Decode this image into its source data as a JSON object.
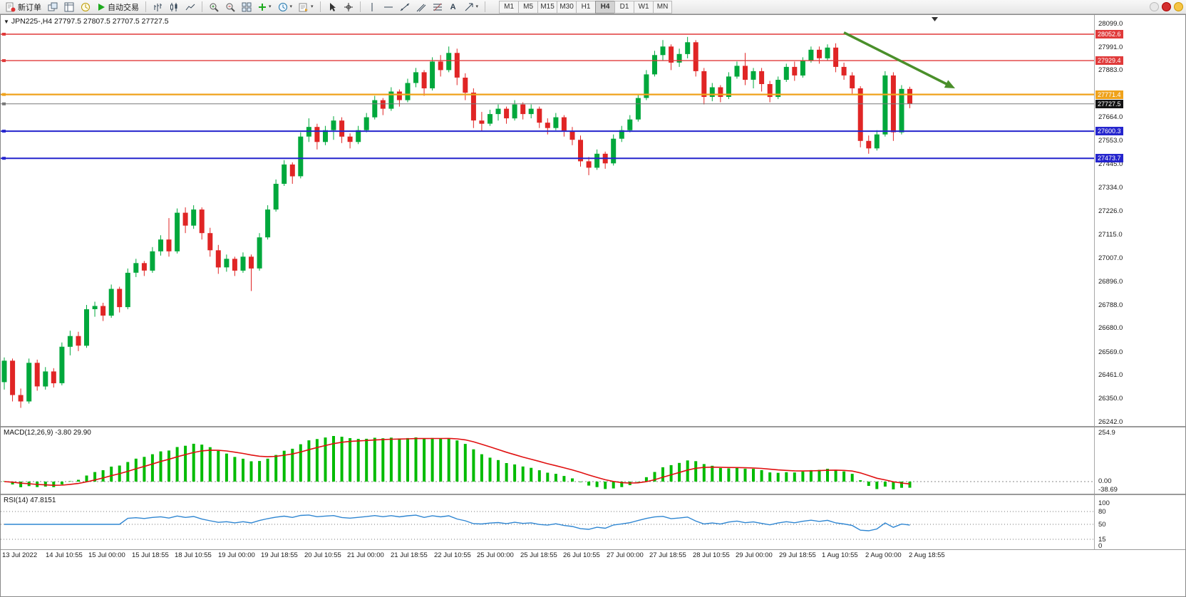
{
  "toolbar": {
    "new_order_label": "新订单",
    "autotrading_label": "自动交易",
    "text_tool_label": "A",
    "timeframes": [
      "M1",
      "M5",
      "M15",
      "M30",
      "H1",
      "H4",
      "D1",
      "W1",
      "MN"
    ],
    "active_timeframe": "H4"
  },
  "chart": {
    "title": "JPN225-,H4  27797.5 27807.5 27707.5 27727.5",
    "symbol": "JPN225-",
    "period": "H4",
    "open": "27797.5",
    "high": "27807.5",
    "low": "27707.5",
    "close": "27727.5"
  },
  "colors": {
    "bull": "#00a83c",
    "bear": "#e02525",
    "macd_hist": "#00bb00",
    "macd_signal": "#e01010",
    "rsi_line": "#2f86d2",
    "line_red": "#e03a3a",
    "line_orange": "#efa21b",
    "line_blue": "#2525cd",
    "price_line_grey": "#787878",
    "badge_black": "#141414",
    "arrow_green": "#4a8f2a"
  },
  "price_axis": {
    "max": 28099.0,
    "min": 26242.0,
    "labels": [
      "28099.0",
      "27991.0",
      "27883.0",
      "27664.0",
      "27553.0",
      "27445.0",
      "27334.0",
      "27226.0",
      "27115.0",
      "27007.0",
      "26896.0",
      "26788.0",
      "26680.0",
      "26569.0",
      "26461.0",
      "26350.0",
      "26242.0"
    ]
  },
  "hlines": [
    {
      "price": 28052.6,
      "label": "28052.6",
      "color": "line_red",
      "width": 1.4
    },
    {
      "price": 27929.4,
      "label": "27929.4",
      "color": "line_red",
      "width": 1.4
    },
    {
      "price": 27771.4,
      "label": "27771.4",
      "color": "line_orange",
      "width": 2.2
    },
    {
      "price": 27727.5,
      "label": "27727.5",
      "color": "badge_black",
      "width": 1,
      "line_color": "price_line_grey"
    },
    {
      "price": 27600.3,
      "label": "27600.3",
      "color": "line_blue",
      "width": 2
    },
    {
      "price": 27473.7,
      "label": "27473.7",
      "color": "line_blue",
      "width": 2
    }
  ],
  "arrow": {
    "from_bar": 102,
    "from_price": 28060,
    "to_bar": 115.5,
    "to_price": 27800
  },
  "indicators": {
    "macd_label": "MACD(12,26,9) -3.80 29.90",
    "macd_axis": [
      "254.9",
      "0.00",
      "-38.69"
    ],
    "macd_params": {
      "fast": 12,
      "slow": 26,
      "signal": 9
    },
    "macd_current": [
      -3.8,
      29.9
    ],
    "rsi_label": "RSI(14) 47.8151",
    "rsi_axis": [
      "100",
      "80",
      "50",
      "15",
      "0"
    ],
    "rsi_levels": [
      80,
      50,
      15
    ],
    "rsi_period": 14,
    "rsi_current": 47.8151
  },
  "chart_data": [
    {
      "type": "candlestick",
      "title": "JPN225-,H4",
      "ylim": [
        26242.0,
        28099.0
      ],
      "x_labels": [
        "13 Jul 2022",
        "14 Jul 10:55",
        "15 Jul 00:00",
        "15 Jul 18:55",
        "18 Jul 10:55",
        "19 Jul 00:00",
        "19 Jul 18:55",
        "20 Jul 10:55",
        "21 Jul 00:00",
        "21 Jul 18:55",
        "22 Jul 10:55",
        "25 Jul 00:00",
        "25 Jul 18:55",
        "26 Jul 10:55",
        "27 Jul 00:00",
        "27 Jul 18:55",
        "28 Jul 10:55",
        "29 Jul 00:00",
        "29 Jul 18:55",
        "1 Aug 10:55",
        "2 Aug 00:00",
        "2 Aug 18:55"
      ],
      "candles": [
        [
          26430,
          26545,
          26395,
          26530
        ],
        [
          26530,
          26540,
          26340,
          26370
        ],
        [
          26370,
          26400,
          26310,
          26340
        ],
        [
          26340,
          26540,
          26330,
          26520
        ],
        [
          26520,
          26535,
          26390,
          26410
        ],
        [
          26410,
          26500,
          26395,
          26480
        ],
        [
          26480,
          26495,
          26405,
          26425
        ],
        [
          26425,
          26615,
          26415,
          26595
        ],
        [
          26595,
          26670,
          26555,
          26645
        ],
        [
          26645,
          26665,
          26575,
          26600
        ],
        [
          26600,
          26790,
          26590,
          26770
        ],
        [
          26770,
          26805,
          26735,
          26785
        ],
        [
          26785,
          26800,
          26715,
          26740
        ],
        [
          26740,
          26885,
          26730,
          26865
        ],
        [
          26865,
          26875,
          26755,
          26780
        ],
        [
          26780,
          26960,
          26770,
          26940
        ],
        [
          26940,
          27005,
          26920,
          26985
        ],
        [
          26985,
          26995,
          26925,
          26950
        ],
        [
          26950,
          27060,
          26940,
          27040
        ],
        [
          27040,
          27115,
          27020,
          27095
        ],
        [
          27095,
          27195,
          27015,
          27040
        ],
        [
          27040,
          27240,
          27030,
          27220
        ],
        [
          27220,
          27245,
          27125,
          27160
        ],
        [
          27160,
          27255,
          27145,
          27235
        ],
        [
          27235,
          27245,
          27095,
          27125
        ],
        [
          27125,
          27150,
          27015,
          27045
        ],
        [
          27045,
          27070,
          26935,
          26965
        ],
        [
          26965,
          27025,
          26945,
          27005
        ],
        [
          27005,
          27015,
          26925,
          26950
        ],
        [
          26950,
          27035,
          26940,
          27015
        ],
        [
          27015,
          27025,
          26855,
          26960
        ],
        [
          26960,
          27125,
          26950,
          27105
        ],
        [
          27105,
          27255,
          27095,
          27235
        ],
        [
          27235,
          27375,
          27225,
          27355
        ],
        [
          27355,
          27465,
          27345,
          27445
        ],
        [
          27445,
          27455,
          27355,
          27390
        ],
        [
          27390,
          27595,
          27380,
          27575
        ],
        [
          27575,
          27660,
          27550,
          27620
        ],
        [
          27620,
          27635,
          27515,
          27550
        ],
        [
          27550,
          27625,
          27535,
          27605
        ],
        [
          27605,
          27670,
          27560,
          27650
        ],
        [
          27650,
          27665,
          27545,
          27575
        ],
        [
          27575,
          27590,
          27520,
          27550
        ],
        [
          27550,
          27625,
          27540,
          27605
        ],
        [
          27605,
          27685,
          27595,
          27665
        ],
        [
          27665,
          27765,
          27655,
          27745
        ],
        [
          27745,
          27755,
          27675,
          27705
        ],
        [
          27705,
          27805,
          27695,
          27785
        ],
        [
          27785,
          27795,
          27715,
          27745
        ],
        [
          27745,
          27845,
          27735,
          27825
        ],
        [
          27825,
          27895,
          27805,
          27875
        ],
        [
          27875,
          27885,
          27765,
          27800
        ],
        [
          27800,
          27945,
          27790,
          27925
        ],
        [
          27925,
          27955,
          27855,
          27885
        ],
        [
          27885,
          27995,
          27875,
          27965
        ],
        [
          27965,
          27985,
          27815,
          27850
        ],
        [
          27850,
          27870,
          27745,
          27780
        ],
        [
          27780,
          27800,
          27615,
          27650
        ],
        [
          27650,
          27690,
          27600,
          27635
        ],
        [
          27635,
          27700,
          27625,
          27680
        ],
        [
          27680,
          27725,
          27650,
          27705
        ],
        [
          27705,
          27715,
          27635,
          27660
        ],
        [
          27660,
          27745,
          27650,
          27725
        ],
        [
          27725,
          27735,
          27655,
          27680
        ],
        [
          27680,
          27725,
          27660,
          27705
        ],
        [
          27705,
          27715,
          27615,
          27640
        ],
        [
          27640,
          27660,
          27585,
          27615
        ],
        [
          27615,
          27685,
          27605,
          27665
        ],
        [
          27665,
          27675,
          27575,
          27600
        ],
        [
          27600,
          27620,
          27535,
          27560
        ],
        [
          27560,
          27580,
          27435,
          27460
        ],
        [
          27460,
          27480,
          27395,
          27430
        ],
        [
          27430,
          27515,
          27420,
          27495
        ],
        [
          27495,
          27505,
          27425,
          27450
        ],
        [
          27450,
          27585,
          27440,
          27565
        ],
        [
          27565,
          27625,
          27550,
          27605
        ],
        [
          27605,
          27675,
          27595,
          27655
        ],
        [
          27655,
          27775,
          27645,
          27755
        ],
        [
          27755,
          27885,
          27745,
          27865
        ],
        [
          27865,
          27975,
          27855,
          27955
        ],
        [
          27955,
          28025,
          27930,
          27995
        ],
        [
          27995,
          28005,
          27885,
          27920
        ],
        [
          27920,
          27985,
          27900,
          27960
        ],
        [
          27960,
          28040,
          27940,
          28015
        ],
        [
          28015,
          28025,
          27855,
          27880
        ],
        [
          27880,
          27895,
          27725,
          27760
        ],
        [
          27760,
          27825,
          27740,
          27805
        ],
        [
          27805,
          27815,
          27735,
          27760
        ],
        [
          27760,
          27875,
          27750,
          27855
        ],
        [
          27855,
          27925,
          27845,
          27905
        ],
        [
          27905,
          27965,
          27815,
          27840
        ],
        [
          27840,
          27895,
          27800,
          27880
        ],
        [
          27880,
          27895,
          27785,
          27820
        ],
        [
          27820,
          27835,
          27735,
          27760
        ],
        [
          27760,
          27855,
          27750,
          27840
        ],
        [
          27840,
          27915,
          27830,
          27900
        ],
        [
          27900,
          27925,
          27835,
          27860
        ],
        [
          27860,
          27945,
          27850,
          27930
        ],
        [
          27930,
          27995,
          27920,
          27980
        ],
        [
          27980,
          27995,
          27915,
          27940
        ],
        [
          27940,
          28005,
          27930,
          27990
        ],
        [
          27990,
          28010,
          27875,
          27900
        ],
        [
          27900,
          27920,
          27840,
          27860
        ],
        [
          27860,
          27875,
          27775,
          27800
        ],
        [
          27800,
          27810,
          27525,
          27555
        ],
        [
          27555,
          27580,
          27495,
          27520
        ],
        [
          27520,
          27605,
          27510,
          27585
        ],
        [
          27585,
          27880,
          27575,
          27860
        ],
        [
          27860,
          27875,
          27555,
          27595
        ],
        [
          27595,
          27815,
          27585,
          27797.5
        ],
        [
          27797.5,
          27807.5,
          27707.5,
          27727.5
        ]
      ]
    },
    {
      "type": "bar",
      "name": "MACD(12,26,9)",
      "derived_from": "candles closes (EMA12-EMA26, signal EMA9)",
      "current": [
        -3.8,
        29.9
      ],
      "ylim": [
        -38.69,
        254.9
      ]
    },
    {
      "type": "line",
      "name": "RSI(14)",
      "derived_from": "candles closes (Wilder 14)",
      "current": 47.8151,
      "ylim": [
        0,
        100
      ]
    }
  ]
}
